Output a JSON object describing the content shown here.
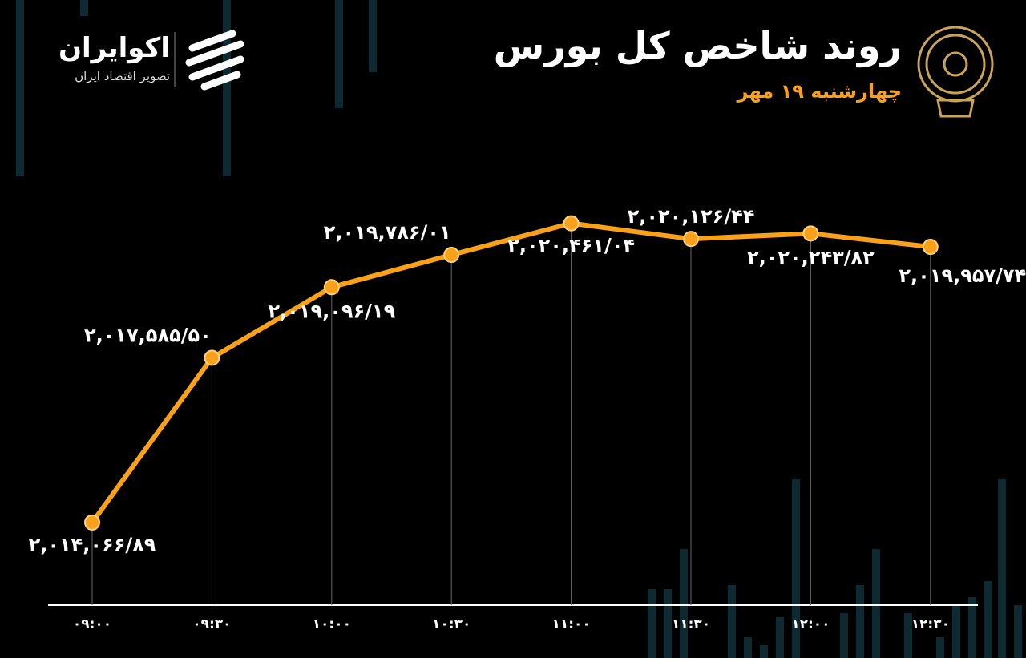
{
  "brand": {
    "name": "اکوایران",
    "tagline": "تصویر اقتصاد ایران"
  },
  "chart_data": {
    "type": "line",
    "title": "روند شاخص کل بورس",
    "subtitle": "چهارشنبه ۱۹ مهر",
    "categories": [
      "۰۹:۰۰",
      "۰۹:۳۰",
      "۱۰:۰۰",
      "۱۰:۳۰",
      "۱۱:۰۰",
      "۱۱:۳۰",
      "۱۲:۰۰",
      "۱۲:۳۰"
    ],
    "values": [
      2014066.89,
      2017585.5,
      2019096.19,
      2019786.01,
      2020461.04,
      2020126.44,
      2020243.82,
      2019957.74
    ],
    "value_labels": [
      "۲,۰۱۴,۰۶۶/۸۹",
      "۲,۰۱۷,۵۸۵/۵۰",
      "۲,۰۱۹,۰۹۶/۱۹",
      "۲,۰۱۹,۷۸۶/۰۱",
      "۲,۰۲۰,۴۶۱/۰۴",
      "۲,۰۲۰,۱۲۶/۴۴",
      "۲,۰۲۰,۲۴۳/۸۲",
      "۲,۰۱۹,۹۵۷/۷۴"
    ],
    "color": "#f9a11b",
    "ylim": [
      2012300,
      2021500
    ]
  }
}
